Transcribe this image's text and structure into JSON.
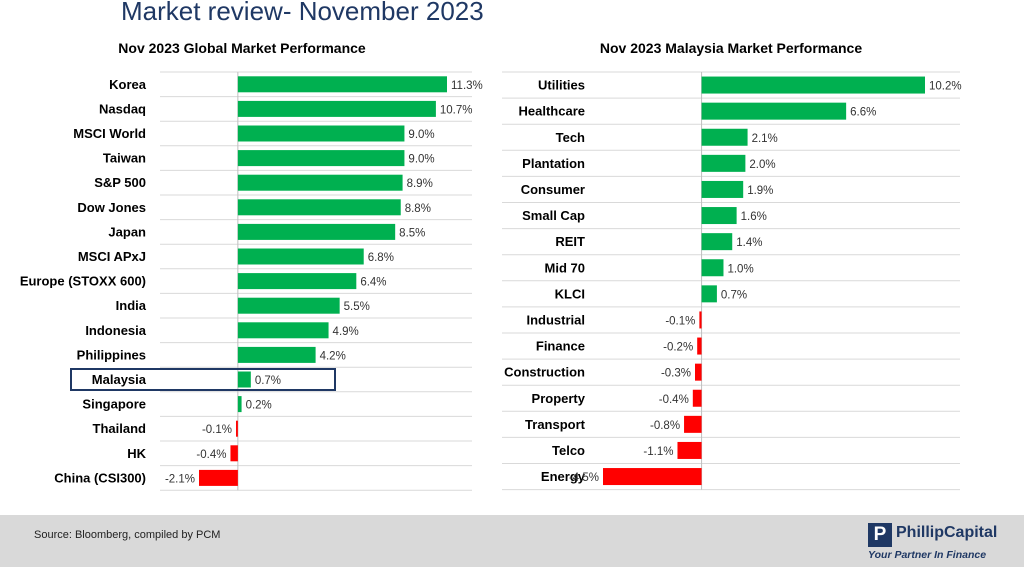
{
  "page_title": "Market review- November 2023",
  "footer": {
    "source": "Source: Bloomberg, compiled by PCM"
  },
  "logo": {
    "name": "PhillipCapital",
    "mark": "P",
    "tagline": "Your Partner In Finance"
  },
  "colors": {
    "positive": "#00b050",
    "negative": "#ff0000",
    "highlight": "#1f3864",
    "title": "#1f3864",
    "grid": "#d9d9d9"
  },
  "chart_data": [
    {
      "type": "bar",
      "orientation": "horizontal",
      "title": "Nov 2023 Global Market Performance",
      "categories": [
        "Korea",
        "Nasdaq",
        "MSCI World",
        "Taiwan",
        "S&P 500",
        "Dow Jones",
        "Japan",
        "MSCI APxJ",
        "Europe (STOXX 600)",
        "India",
        "Indonesia",
        "Philippines",
        "Malaysia",
        "Singapore",
        "Thailand",
        "HK",
        "China (CSI300)"
      ],
      "values": [
        11.3,
        10.7,
        9.0,
        9.0,
        8.9,
        8.8,
        8.5,
        6.8,
        6.4,
        5.5,
        4.9,
        4.2,
        0.7,
        0.2,
        -0.1,
        -0.4,
        -2.1
      ],
      "labels": [
        "11.3%",
        "10.7%",
        "9.0%",
        "9.0%",
        "8.9%",
        "8.8%",
        "8.5%",
        "6.8%",
        "6.4%",
        "5.5%",
        "4.9%",
        "4.2%",
        "0.7%",
        "0.2%",
        "-0.1%",
        "-0.4%",
        "-2.1%"
      ],
      "highlighted": "Malaysia",
      "xlim": [
        -2.1,
        11.3
      ],
      "unit": "%"
    },
    {
      "type": "bar",
      "orientation": "horizontal",
      "title": "Nov 2023 Malaysia Market Performance",
      "categories": [
        "Utilities",
        "Healthcare",
        "Tech",
        "Plantation",
        "Consumer",
        "Small Cap",
        "REIT",
        "Mid 70",
        "KLCI",
        "Industrial",
        "Finance",
        "Construction",
        "Property",
        "Transport",
        "Telco",
        "Energy"
      ],
      "values": [
        10.2,
        6.6,
        2.1,
        2.0,
        1.9,
        1.6,
        1.4,
        1.0,
        0.7,
        -0.1,
        -0.2,
        -0.3,
        -0.4,
        -0.8,
        -1.1,
        -4.5
      ],
      "labels": [
        "10.2%",
        "6.6%",
        "2.1%",
        "2.0%",
        "1.9%",
        "1.6%",
        "1.4%",
        "1.0%",
        "0.7%",
        "-0.1%",
        "-0.2%",
        "-0.3%",
        "-0.4%",
        "-0.8%",
        "-1.1%",
        "-4.5%"
      ],
      "xlim": [
        -4.5,
        10.2
      ],
      "unit": "%"
    }
  ]
}
